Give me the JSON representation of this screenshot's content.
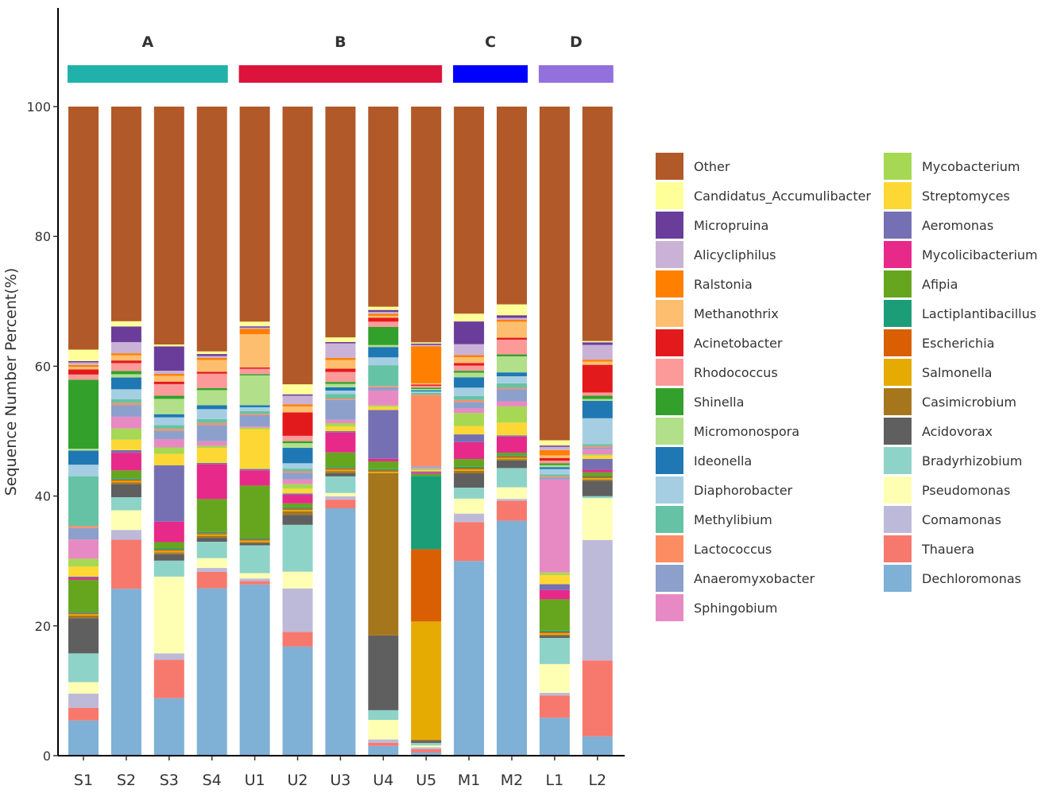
{
  "chart_data": {
    "type": "bar",
    "stacked": true,
    "title": "",
    "xlabel": "",
    "ylabel": "Sequence Number Percent(%)",
    "ylim": [
      0,
      100
    ],
    "yticks": [
      0,
      20,
      40,
      60,
      80,
      100
    ],
    "categories": [
      "S1",
      "S2",
      "S3",
      "S4",
      "U1",
      "U2",
      "U3",
      "U4",
      "U5",
      "M1",
      "M2",
      "L1",
      "L2"
    ],
    "groups": [
      {
        "label": "A",
        "color": "#20B2AA",
        "categories": [
          "S1",
          "S2",
          "S3",
          "S4"
        ]
      },
      {
        "label": "B",
        "color": "#DC143C",
        "categories": [
          "U1",
          "U2",
          "U3",
          "U4",
          "U5"
        ]
      },
      {
        "label": "C",
        "color": "#0000FF",
        "categories": [
          "M1",
          "M2"
        ]
      },
      {
        "label": "D",
        "color": "#9370DB",
        "categories": [
          "L1",
          "L2"
        ]
      }
    ],
    "legend": {
      "position": "right",
      "ncol": 2
    },
    "series": [
      {
        "name": "Dechloromonas",
        "color": "#7FB0D5",
        "values": [
          5.5,
          25.5,
          9.0,
          25.5,
          25.8,
          16.3,
          37.2,
          1.5,
          0.5,
          30.0,
          36.6,
          5.8,
          3.0
        ]
      },
      {
        "name": "Thauera",
        "color": "#F7796E",
        "values": [
          2.0,
          7.5,
          6.0,
          2.5,
          0.5,
          2.2,
          1.3,
          0.5,
          0.5,
          6.0,
          3.1,
          3.4,
          11.8
        ]
      },
      {
        "name": "Comamonas",
        "color": "#BDBAD9",
        "values": [
          2.2,
          1.5,
          1.0,
          0.6,
          0.4,
          6.5,
          0.5,
          0.5,
          0.3,
          1.3,
          0.3,
          0.4,
          18.7
        ]
      },
      {
        "name": "Pseudomonas",
        "color": "#FFFFB4",
        "values": [
          1.8,
          3.0,
          12.0,
          1.5,
          0.8,
          2.5,
          0.5,
          3.0,
          0.3,
          2.3,
          1.8,
          4.4,
          6.5
        ]
      },
      {
        "name": "Bradyrhizobium",
        "color": "#8ED3C8",
        "values": [
          4.5,
          2.0,
          2.5,
          2.5,
          4.2,
          7.0,
          2.5,
          1.5,
          0.4,
          1.7,
          3.0,
          4.0,
          0.3
        ]
      },
      {
        "name": "Acidovorax",
        "color": "#5F5F5F",
        "values": [
          5.5,
          2.0,
          1.0,
          0.6,
          0.3,
          1.5,
          0.5,
          11.5,
          0.3,
          2.2,
          1.2,
          0.3,
          2.4
        ]
      },
      {
        "name": "Casimicrobium",
        "color": "#A6761D",
        "values": [
          0.4,
          0.3,
          0.3,
          0.3,
          0.2,
          0.5,
          0.3,
          25.0,
          0.2,
          0.4,
          0.2,
          0.2,
          0.2
        ]
      },
      {
        "name": "Salmonella",
        "color": "#E6AB02",
        "values": [
          0.2,
          0.2,
          0.2,
          0.2,
          0.2,
          0.2,
          0.2,
          0.2,
          18.5,
          0.2,
          0.2,
          0.2,
          0.2
        ]
      },
      {
        "name": "Escherichia",
        "color": "#D95F02",
        "values": [
          0.2,
          0.2,
          0.2,
          0.2,
          0.2,
          0.2,
          0.2,
          0.2,
          11.3,
          0.2,
          0.2,
          0.2,
          0.2
        ]
      },
      {
        "name": "Lactiplantibacillus",
        "color": "#1B9E77",
        "values": [
          0.2,
          0.2,
          0.2,
          0.2,
          0.2,
          0.2,
          0.2,
          0.2,
          11.5,
          0.2,
          0.2,
          0.2,
          0.2
        ]
      },
      {
        "name": "Afipia",
        "color": "#66A61E",
        "values": [
          5.0,
          1.2,
          1.0,
          5.0,
          7.9,
          0.6,
          2.2,
          1.2,
          0.3,
          1.2,
          0.4,
          4.8,
          0.5
        ]
      },
      {
        "name": "Mycolicibacterium",
        "color": "#E7298A",
        "values": [
          0.3,
          2.7,
          3.2,
          5.3,
          2.3,
          1.3,
          3.0,
          0.4,
          0.2,
          2.6,
          2.5,
          1.4,
          0.4
        ]
      },
      {
        "name": "Aeromonas",
        "color": "#7570B3",
        "values": [
          0.2,
          0.4,
          8.8,
          0.2,
          0.2,
          0.2,
          0.2,
          7.5,
          0.2,
          1.2,
          0.2,
          0.9,
          1.7
        ]
      },
      {
        "name": "Streptomyces",
        "color": "#FDD835",
        "values": [
          1.6,
          1.6,
          1.8,
          2.3,
          6.0,
          0.7,
          0.7,
          0.5,
          0.2,
          1.3,
          2.0,
          1.4,
          0.5
        ]
      },
      {
        "name": "Mycobacterium",
        "color": "#A6D854",
        "values": [
          1.2,
          1.7,
          1.0,
          0.3,
          0.2,
          0.7,
          0.5,
          0.2,
          0.2,
          2.0,
          2.5,
          0.4,
          0.2
        ]
      },
      {
        "name": "Sphingobium",
        "color": "#E78AC3",
        "values": [
          3.0,
          1.8,
          1.3,
          0.7,
          0.2,
          0.7,
          0.5,
          2.3,
          0.2,
          0.7,
          0.8,
          14.2,
          0.8
        ]
      },
      {
        "name": "Anaeromyxobacter",
        "color": "#8DA0CB",
        "values": [
          1.8,
          1.8,
          1.3,
          2.5,
          1.7,
          1.0,
          3.0,
          0.5,
          0.2,
          1.0,
          1.9,
          0.3,
          0.3
        ]
      },
      {
        "name": "Lactococcus",
        "color": "#FC8D62",
        "values": [
          0.3,
          0.3,
          0.3,
          0.3,
          0.2,
          0.2,
          0.2,
          0.2,
          11.2,
          0.3,
          0.2,
          0.2,
          0.2
        ]
      },
      {
        "name": "Methylibium",
        "color": "#66C2A5",
        "values": [
          7.8,
          0.6,
          0.6,
          0.6,
          0.4,
          0.4,
          0.7,
          3.2,
          0.3,
          0.6,
          0.7,
          0.3,
          0.3
        ]
      },
      {
        "name": "Diaphorobacter",
        "color": "#A6CEE3",
        "values": [
          1.8,
          1.5,
          1.2,
          1.5,
          0.6,
          0.8,
          0.5,
          1.2,
          0.2,
          1.3,
          1.1,
          0.8,
          4.0
        ]
      },
      {
        "name": "Ideonella",
        "color": "#1F78B4",
        "values": [
          2.2,
          1.8,
          0.5,
          0.6,
          0.3,
          2.3,
          0.5,
          1.6,
          0.2,
          1.6,
          0.6,
          0.3,
          2.7
        ]
      },
      {
        "name": "Micromonospora",
        "color": "#B2DF8A",
        "values": [
          0.3,
          0.5,
          2.4,
          2.3,
          4.5,
          0.7,
          0.5,
          0.3,
          0.2,
          0.7,
          2.5,
          0.3,
          0.3
        ]
      },
      {
        "name": "Shinella",
        "color": "#33A02C",
        "values": [
          10.8,
          0.5,
          0.5,
          0.3,
          0.2,
          0.3,
          0.3,
          2.8,
          0.2,
          0.3,
          0.3,
          0.3,
          0.5
        ]
      },
      {
        "name": "Rhodococcus",
        "color": "#FB9A99",
        "values": [
          0.8,
          1.2,
          1.8,
          2.2,
          0.8,
          0.8,
          1.5,
          0.8,
          0.3,
          0.8,
          2.3,
          0.4,
          0.5
        ]
      },
      {
        "name": "Acinetobacter",
        "color": "#E31A1C",
        "values": [
          0.8,
          0.4,
          0.4,
          0.3,
          0.2,
          3.5,
          0.5,
          0.6,
          0.2,
          0.4,
          0.3,
          0.4,
          4.3
        ]
      },
      {
        "name": "Methanothrix",
        "color": "#FDBF6F",
        "values": [
          0.4,
          0.8,
          0.9,
          1.8,
          5.0,
          0.9,
          1.3,
          0.3,
          0.2,
          0.9,
          2.5,
          0.4,
          0.5
        ]
      },
      {
        "name": "Ralstonia",
        "color": "#FF7F00",
        "values": [
          0.3,
          0.3,
          0.3,
          0.3,
          0.8,
          0.3,
          0.3,
          0.3,
          5.8,
          0.3,
          0.3,
          0.8,
          0.3
        ]
      },
      {
        "name": "Alicycliphilus",
        "color": "#CAB2D6",
        "values": [
          0.4,
          1.7,
          0.5,
          0.3,
          0.2,
          1.3,
          2.2,
          0.3,
          0.2,
          1.7,
          0.3,
          0.5,
          2.3
        ]
      },
      {
        "name": "Micropruina",
        "color": "#6A3D9A",
        "values": [
          0.2,
          2.4,
          3.8,
          0.3,
          0.2,
          0.2,
          0.2,
          0.3,
          0.2,
          3.5,
          0.4,
          0.2,
          0.4
        ]
      },
      {
        "name": "Candidatus_Accumulibacter",
        "color": "#FFFF99",
        "values": [
          1.8,
          0.8,
          0.3,
          0.4,
          0.7,
          1.5,
          0.7,
          0.5,
          0.2,
          1.2,
          1.7,
          0.8,
          0.2
        ]
      },
      {
        "name": "Other",
        "color": "#B15928",
        "values": [
          38.0,
          32.8,
          37.2,
          37.3,
          32.4,
          41.5,
          34.7,
          30.8,
          36.9,
          31.9,
          30.8,
          51.0,
          36.4
        ]
      }
    ]
  }
}
